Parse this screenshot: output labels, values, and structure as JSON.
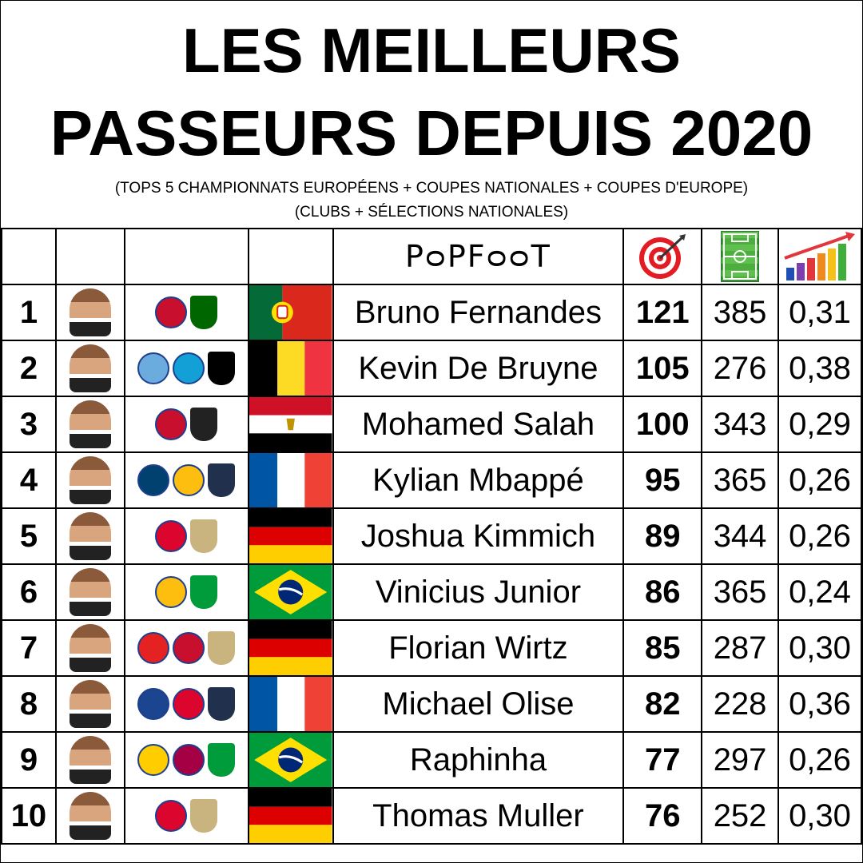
{
  "title_line1": "LES MEILLEURS",
  "title_line2": "PASSEURS DEPUIS 2020",
  "subtitle_line1": "(TOPS 5 CHAMPIONNATS EUROPÉENS + COUPES NATIONALES + COUPES D'EUROPE)",
  "subtitle_line2": "(CLUBS + SÉLECTIONS NATIONALES)",
  "header": {
    "brand": "PᴑPFᴑᴑT",
    "assists_icon": "target-icon",
    "matches_icon": "pitch-icon",
    "ratio_icon": "growth-chart-icon"
  },
  "rows": [
    {
      "rank": "1",
      "name": "Bruno Fernandes",
      "assists": "121",
      "matches": "385",
      "ratio": "0,31",
      "flag": "portugal",
      "crests": [
        "#c8102e",
        "#006600"
      ]
    },
    {
      "rank": "2",
      "name": "Kevin De Bruyne",
      "assists": "105",
      "matches": "276",
      "ratio": "0,38",
      "flag": "belgium",
      "crests": [
        "#6cabdd",
        "#12a0d7",
        "#000000"
      ]
    },
    {
      "rank": "3",
      "name": "Mohamed Salah",
      "assists": "100",
      "matches": "343",
      "ratio": "0,29",
      "flag": "egypt",
      "crests": [
        "#c8102e",
        "#222222"
      ]
    },
    {
      "rank": "4",
      "name": "Kylian Mbappé",
      "assists": "95",
      "matches": "365",
      "ratio": "0,26",
      "flag": "france",
      "crests": [
        "#004170",
        "#febe10",
        "#21304d"
      ]
    },
    {
      "rank": "5",
      "name": "Joshua Kimmich",
      "assists": "89",
      "matches": "344",
      "ratio": "0,26",
      "flag": "germany",
      "crests": [
        "#dc052d",
        "#c9b37e"
      ]
    },
    {
      "rank": "6",
      "name": "Vinicius Junior",
      "assists": "86",
      "matches": "365",
      "ratio": "0,24",
      "flag": "brazil",
      "crests": [
        "#febe10",
        "#009c3b"
      ]
    },
    {
      "rank": "7",
      "name": "Florian Wirtz",
      "assists": "85",
      "matches": "287",
      "ratio": "0,30",
      "flag": "germany",
      "crests": [
        "#e32221",
        "#c8102e",
        "#c9b37e"
      ]
    },
    {
      "rank": "8",
      "name": "Michael Olise",
      "assists": "82",
      "matches": "228",
      "ratio": "0,36",
      "flag": "france",
      "crests": [
        "#1b458f",
        "#dc052d",
        "#21304d"
      ]
    },
    {
      "rank": "9",
      "name": "Raphinha",
      "assists": "77",
      "matches": "297",
      "ratio": "0,26",
      "flag": "brazil",
      "crests": [
        "#ffcd00",
        "#a50044",
        "#009c3b"
      ]
    },
    {
      "rank": "10",
      "name": "Thomas Muller",
      "assists": "76",
      "matches": "252",
      "ratio": "0,30",
      "flag": "germany",
      "crests": [
        "#dc052d",
        "#c9b37e"
      ]
    }
  ]
}
